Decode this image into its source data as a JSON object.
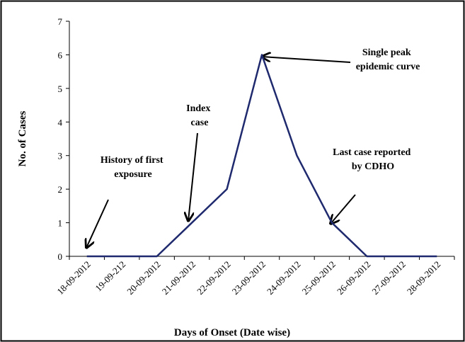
{
  "chart_data": {
    "type": "line",
    "x_label": "Days of Onset (Date wise)",
    "y_label": "No. of Cases",
    "categories": [
      "18-09-2012",
      "19-09-212",
      "20-09-2012",
      "21-09-2012",
      "22-09-2012",
      "23-09-2012",
      "24-09-2012",
      "25-09-2012",
      "26-09-2012",
      "27-09-2012",
      "28-09-2012"
    ],
    "series": [
      {
        "name": "Cases",
        "color": "#1f2a6e",
        "values": [
          0,
          0,
          0,
          1,
          2,
          6,
          3,
          1,
          0,
          0,
          0
        ]
      }
    ],
    "ylim": [
      0,
      7
    ],
    "yticks": [
      0,
      1,
      2,
      3,
      4,
      5,
      6,
      7
    ],
    "annotations": [
      {
        "lines": [
          "History of first",
          "exposure"
        ]
      },
      {
        "lines": [
          "Index",
          "case"
        ]
      },
      {
        "lines": [
          "Single peak",
          "epidemic  curve"
        ]
      },
      {
        "lines": [
          "Last case reported",
          "by CDHO"
        ]
      }
    ]
  }
}
